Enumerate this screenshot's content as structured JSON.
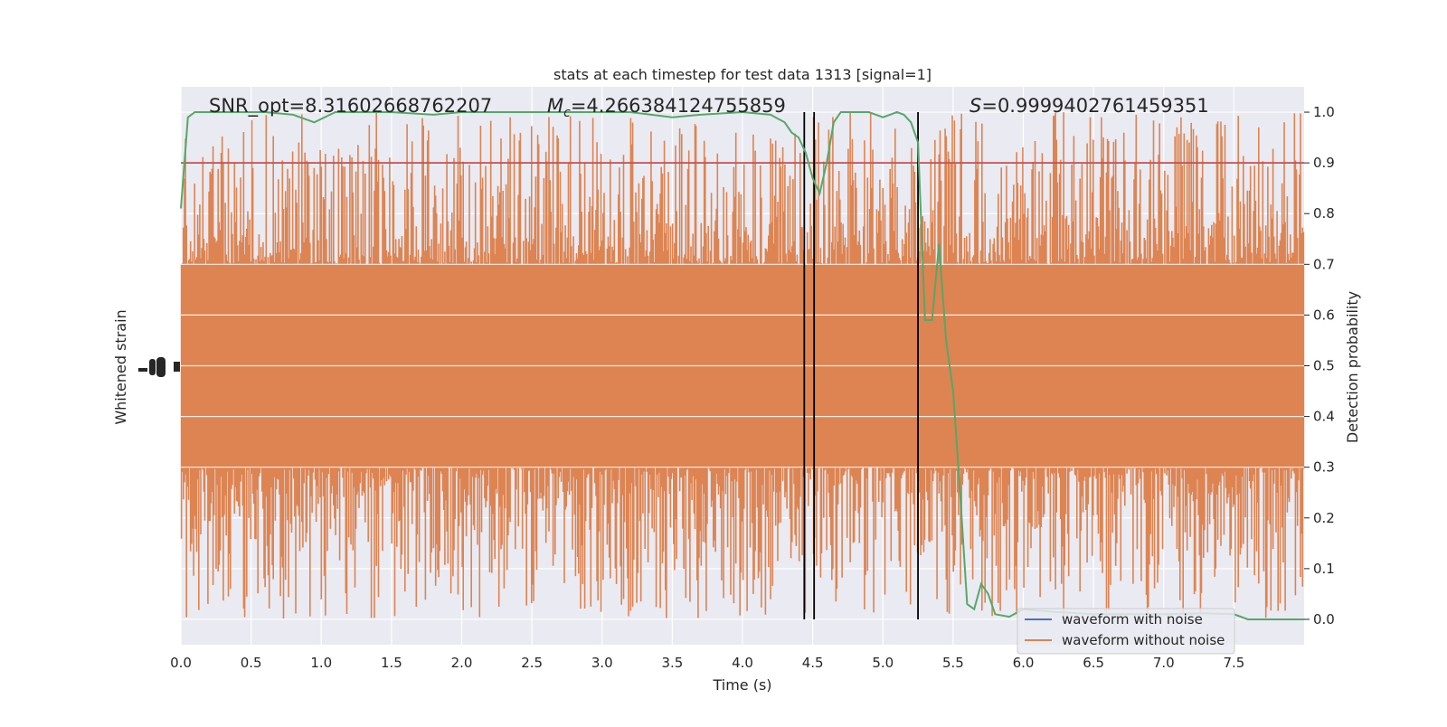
{
  "chart_data": {
    "type": "line",
    "title": "stats at each timestep for test data 1313 [signal=1]",
    "annotations": {
      "snr": "SNR_opt=8.31602668762207",
      "mc_symbol": "M",
      "mc_sub": "c",
      "mc_value": "=4.266384124755859",
      "s_symbol": "S",
      "s_value": "=0.9999402761459351"
    },
    "xlabel": "Time (s)",
    "ylabel_left": "Whitened strain",
    "ylabel_right": "Detection probability",
    "xlim": [
      0,
      8.0
    ],
    "y2lim": [
      -0.05,
      1.05
    ],
    "x_ticks": [
      "0.0",
      "0.5",
      "1.0",
      "1.5",
      "2.0",
      "2.5",
      "3.0",
      "3.5",
      "4.0",
      "4.5",
      "5.0",
      "5.5",
      "6.0",
      "6.5",
      "7.0",
      "7.5"
    ],
    "y2_ticks": [
      "0.0",
      "0.1",
      "0.2",
      "0.3",
      "0.4",
      "0.5",
      "0.6",
      "0.7",
      "0.8",
      "0.9",
      "1.0"
    ],
    "grid": true,
    "legend_position": "lower-right",
    "series": [
      {
        "name": "waveform with noise",
        "color": "#4c72b0"
      },
      {
        "name": "waveform without noise",
        "color": "#dd8452",
        "envelope_hi": 0.8,
        "envelope_lo": 0.2,
        "spike_hi": 1.0,
        "spike_lo": 0.0
      }
    ],
    "detection_probability": {
      "color": "#55a868",
      "x": [
        0.0,
        0.05,
        0.1,
        0.2,
        0.3,
        0.5,
        0.6,
        0.8,
        0.95,
        1.1,
        1.5,
        1.8,
        2.0,
        2.5,
        3.0,
        3.2,
        3.5,
        3.7,
        4.0,
        4.2,
        4.3,
        4.35,
        4.4,
        4.45,
        4.5,
        4.55,
        4.6,
        4.65,
        4.7,
        4.8,
        4.9,
        5.0,
        5.05,
        5.1,
        5.15,
        5.2,
        5.25,
        5.3,
        5.35,
        5.4,
        5.45,
        5.5,
        5.55,
        5.6,
        5.65,
        5.7,
        5.75,
        5.8,
        5.9,
        6.0,
        6.2,
        6.5,
        7.0,
        7.3,
        7.5,
        7.6,
        8.0
      ],
      "y": [
        0.81,
        0.99,
        1.0,
        1.0,
        1.0,
        1.0,
        1.0,
        0.995,
        0.98,
        1.0,
        1.0,
        0.995,
        1.0,
        1.0,
        1.0,
        1.0,
        0.99,
        0.995,
        1.0,
        0.995,
        0.98,
        0.96,
        0.95,
        0.92,
        0.87,
        0.84,
        0.9,
        0.98,
        1.0,
        1.0,
        1.0,
        0.99,
        0.995,
        1.0,
        0.995,
        0.98,
        0.94,
        0.59,
        0.59,
        0.74,
        0.55,
        0.45,
        0.25,
        0.03,
        0.02,
        0.07,
        0.05,
        0.01,
        0.005,
        0.02,
        0.015,
        0.01,
        0.01,
        0.012,
        0.01,
        0.0,
        0.0
      ]
    },
    "threshold": {
      "value": 0.9,
      "color": "#c44e52"
    },
    "vlines": [
      4.44,
      4.51,
      5.25
    ]
  }
}
